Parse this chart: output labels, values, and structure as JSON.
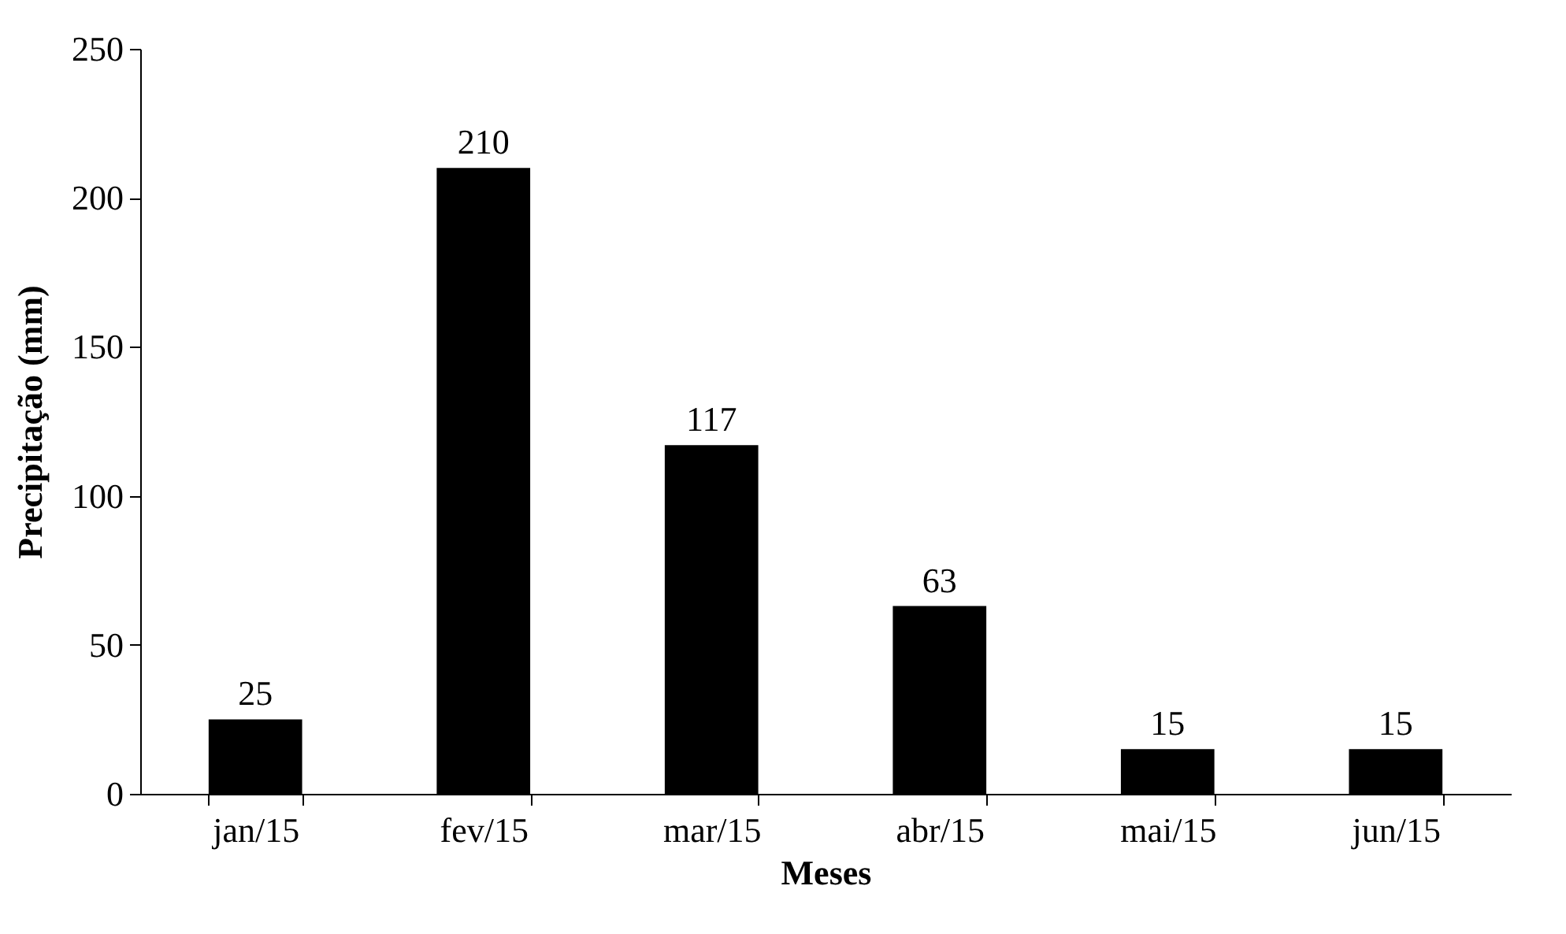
{
  "chart_data": {
    "type": "bar",
    "xlabel": "Meses",
    "ylabel": "Precipitação (mm)",
    "categories": [
      "jan/15",
      "fev/15",
      "mar/15",
      "abr/15",
      "mai/15",
      "jun/15"
    ],
    "values": [
      25,
      210,
      117,
      63,
      15,
      15
    ],
    "color": "#000000",
    "ylim": [
      0,
      250
    ],
    "yticks": [
      0,
      50,
      100,
      150,
      200,
      250
    ],
    "data_labels": true
  }
}
